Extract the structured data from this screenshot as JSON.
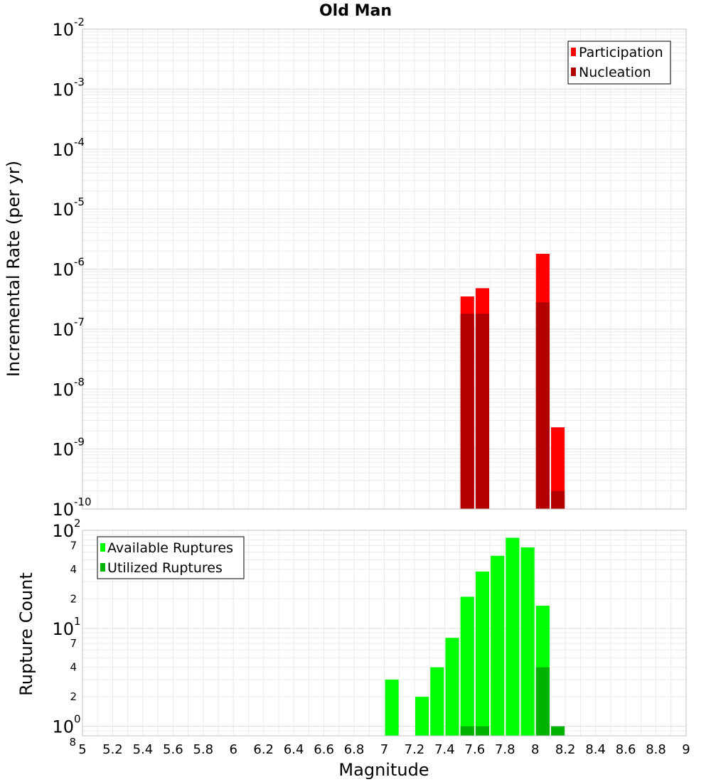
{
  "chart_data": [
    {
      "type": "bar",
      "title": "Old Man",
      "ylabel": "Incremental Rate (per yr)",
      "xlabel": "",
      "ylog": true,
      "xlim": [
        5,
        9
      ],
      "ylim": [
        1e-10,
        0.01
      ],
      "grid": true,
      "legend_position": "top-right",
      "bar_width": 0.09,
      "x_ticks": [
        "5",
        "5.2",
        "5.4",
        "5.6",
        "5.8",
        "6",
        "6.2",
        "6.4",
        "6.6",
        "6.8",
        "7",
        "7.2",
        "7.4",
        "7.6",
        "7.8",
        "8",
        "8.2",
        "8.4",
        "8.6",
        "8.8",
        "9"
      ],
      "y_ticks": [
        {
          "value": 0.01,
          "base": "10",
          "exp": "-2"
        },
        {
          "value": 0.001,
          "base": "10",
          "exp": "-3"
        },
        {
          "value": 0.0001,
          "base": "10",
          "exp": "-4"
        },
        {
          "value": 1e-05,
          "base": "10",
          "exp": "-5"
        },
        {
          "value": 1e-06,
          "base": "10",
          "exp": "-6"
        },
        {
          "value": 1e-07,
          "base": "10",
          "exp": "-7"
        },
        {
          "value": 1e-08,
          "base": "10",
          "exp": "-8"
        },
        {
          "value": 1e-09,
          "base": "10",
          "exp": "-9"
        },
        {
          "value": 1e-10,
          "base": "10",
          "exp": "-10"
        }
      ],
      "series": [
        {
          "name": "Participation",
          "color": "#ff0000",
          "x": [
            7.55,
            7.65,
            8.05,
            8.15
          ],
          "values": [
            3.5e-07,
            4.8e-07,
            1.8e-06,
            2.3e-09
          ]
        },
        {
          "name": "Nucleation",
          "color": "#b20000",
          "x": [
            7.55,
            7.65,
            8.05,
            8.15
          ],
          "values": [
            1.8e-07,
            1.8e-07,
            2.8e-07,
            2e-10
          ]
        }
      ]
    },
    {
      "type": "bar",
      "title": "",
      "ylabel": "Rupture Count",
      "xlabel": "Magnitude",
      "ylog": true,
      "xlim": [
        5,
        9
      ],
      "ylim": [
        0.8,
        100
      ],
      "grid": true,
      "legend_position": "top-left",
      "bar_width": 0.09,
      "x_ticks": [
        "5",
        "5.2",
        "5.4",
        "5.6",
        "5.8",
        "6",
        "6.2",
        "6.4",
        "6.6",
        "6.8",
        "7",
        "7.2",
        "7.4",
        "7.6",
        "7.8",
        "8",
        "8.2",
        "8.4",
        "8.6",
        "8.8",
        "9"
      ],
      "y_ticks": [
        {
          "value": 100,
          "base": "10",
          "exp": "2"
        },
        {
          "value": 70,
          "label": "7"
        },
        {
          "value": 40,
          "label": "4"
        },
        {
          "value": 20,
          "label": "2"
        },
        {
          "value": 10,
          "base": "10",
          "exp": "1"
        },
        {
          "value": 7,
          "label": "7"
        },
        {
          "value": 4,
          "label": "4"
        },
        {
          "value": 2,
          "label": "2"
        },
        {
          "value": 1,
          "base": "10",
          "exp": "0"
        },
        {
          "value": 0.8,
          "label": "8"
        }
      ],
      "series": [
        {
          "name": "Available Ruptures",
          "color": "#00ff00",
          "x": [
            7.05,
            7.25,
            7.35,
            7.45,
            7.55,
            7.65,
            7.75,
            7.85,
            7.95,
            8.05
          ],
          "values": [
            3,
            2,
            4,
            8,
            21,
            38,
            55,
            84,
            67,
            17
          ]
        },
        {
          "name": "Utilized Ruptures",
          "color": "#00b200",
          "x": [
            7.55,
            7.65,
            8.05,
            8.15
          ],
          "values": [
            1,
            1,
            4,
            1
          ]
        }
      ]
    }
  ]
}
